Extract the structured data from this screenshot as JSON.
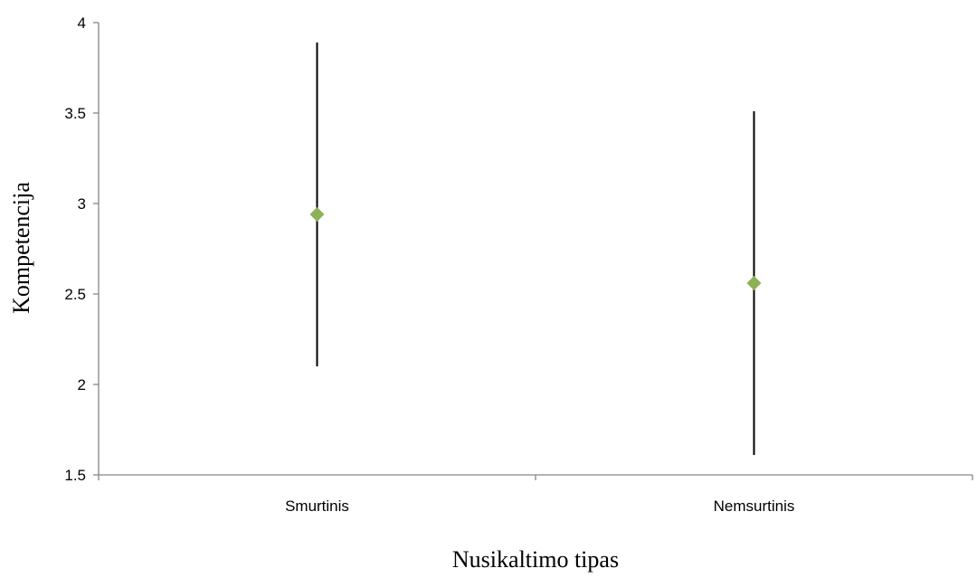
{
  "chart_data": {
    "type": "scatter",
    "title": "",
    "xlabel": "Nusikaltimo tipas",
    "ylabel": "Kompetencija",
    "categories": [
      "Smurtinis",
      "Nemsurtinis"
    ],
    "series": [
      {
        "values": [
          2.94,
          2.56
        ],
        "error_low": [
          2.1,
          1.61
        ],
        "error_high": [
          3.89,
          3.51
        ],
        "marker": "diamond",
        "color": "#8DB255"
      }
    ],
    "ylim": [
      1.5,
      4
    ],
    "yticks": [
      1.5,
      2,
      2.5,
      3,
      3.5,
      4
    ],
    "ytick_labels": [
      "1.5",
      "2",
      "2.5",
      "3",
      "3.5",
      "4"
    ],
    "grid": false,
    "legend": "none",
    "axis_color": "#868686",
    "error_bar_color": "#000000"
  }
}
